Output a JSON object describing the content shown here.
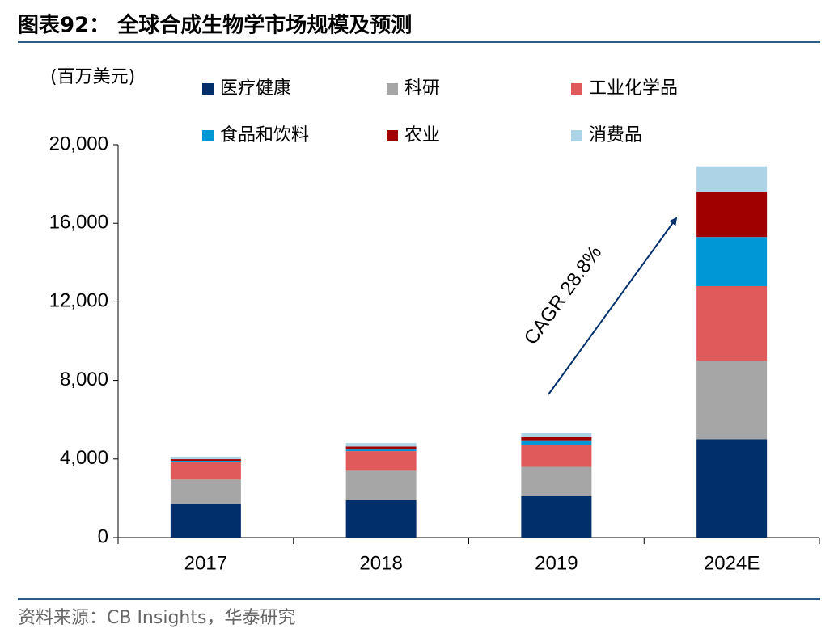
{
  "chart_data": {
    "type": "stacked_bar",
    "title": "图表92：  全球合成生物学市场规模及预测",
    "y_label": "(百万美元)",
    "source": "资料来源：CB Insights，华泰研究",
    "annotation": "CAGR 28.8%",
    "categories": [
      "2017",
      "2018",
      "2019",
      "2024E"
    ],
    "series": [
      {
        "name": "医疗健康",
        "color": "#002f6c",
        "values": [
          1700,
          1900,
          2100,
          5000
        ]
      },
      {
        "name": "科研",
        "color": "#a6a6a6",
        "values": [
          1250,
          1500,
          1500,
          4000
        ]
      },
      {
        "name": "工业化学品",
        "color": "#e05a5c",
        "values": [
          900,
          1000,
          1100,
          3800
        ]
      },
      {
        "name": "食品和饮料",
        "color": "#0097d6",
        "values": [
          60,
          80,
          250,
          2500
        ]
      },
      {
        "name": "农业",
        "color": "#a00000",
        "values": [
          80,
          150,
          160,
          2300
        ]
      },
      {
        "name": "消费品",
        "color": "#acd4e6",
        "values": [
          130,
          180,
          200,
          1300
        ]
      }
    ],
    "ylim": [
      0,
      20000
    ],
    "yticks": [
      0,
      {
        "value": 4000,
        "label": "4,000"
      },
      {
        "value": 8000,
        "label": "8,000"
      },
      {
        "value": 12000,
        "label": "12,000"
      },
      {
        "value": 16000,
        "label": "16,000"
      },
      {
        "value": 20000,
        "label": "20,000"
      }
    ]
  }
}
